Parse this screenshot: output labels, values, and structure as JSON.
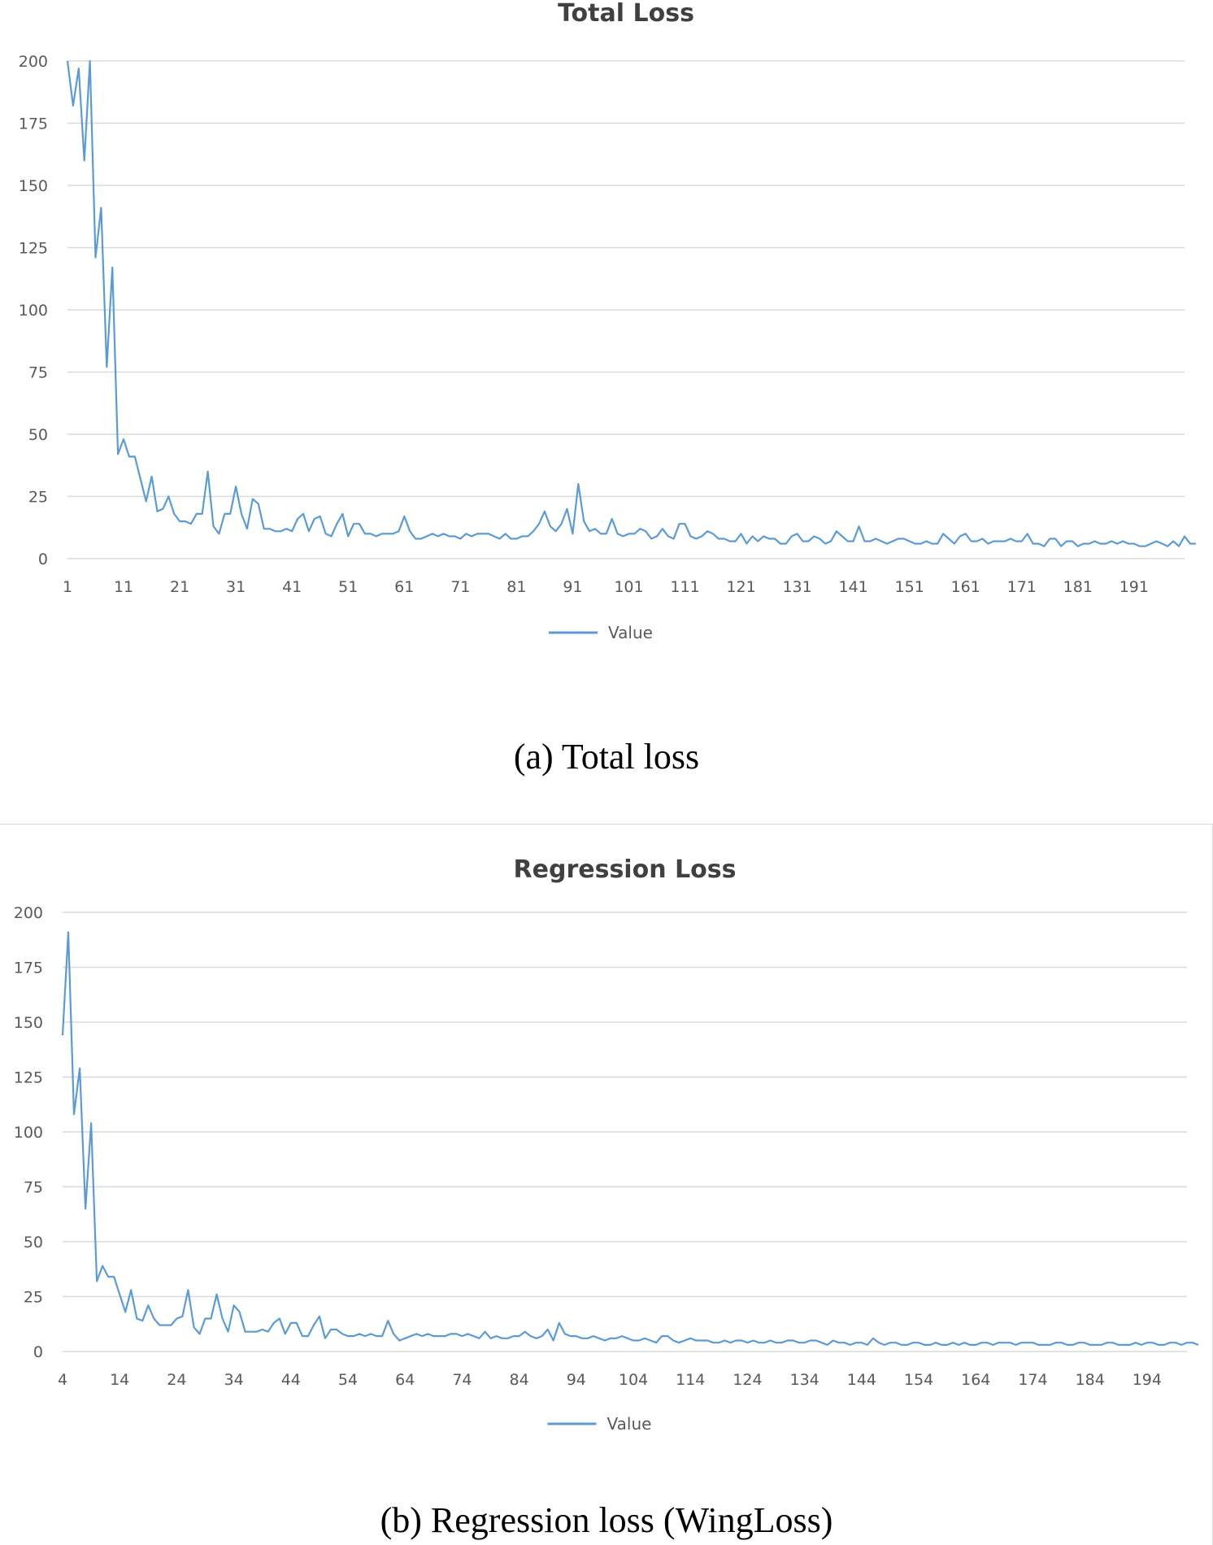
{
  "captions": {
    "a": "(a) Total loss",
    "b": "(b) Regression loss (WingLoss)"
  },
  "chart_data": [
    {
      "type": "line",
      "title": "Total Loss",
      "xlabel": "",
      "ylabel": "",
      "ylim": [
        0,
        200
      ],
      "yticks": [
        0,
        25,
        50,
        75,
        100,
        125,
        150,
        175,
        200
      ],
      "xticks": [
        1,
        11,
        21,
        31,
        41,
        51,
        61,
        71,
        81,
        91,
        101,
        111,
        121,
        131,
        141,
        151,
        161,
        171,
        181,
        191
      ],
      "xlim": [
        1,
        200
      ],
      "grid": "horizontal",
      "legend": "bottom",
      "color": "#5b9bd5",
      "series": [
        {
          "name": "Value",
          "x_start": 1,
          "values": [
            200,
            182,
            197,
            160,
            200,
            121,
            141,
            77,
            117,
            42,
            48,
            41,
            41,
            32,
            23,
            33,
            19,
            20,
            25,
            18,
            15,
            15,
            14,
            18,
            18,
            35,
            13,
            10,
            18,
            18,
            29,
            18,
            12,
            24,
            22,
            12,
            12,
            11,
            11,
            12,
            11,
            16,
            18,
            11,
            16,
            17,
            10,
            9,
            14,
            18,
            9,
            14,
            14,
            10,
            10,
            9,
            10,
            10,
            10,
            11,
            17,
            11,
            8,
            8,
            9,
            10,
            9,
            10,
            9,
            9,
            8,
            10,
            9,
            10,
            10,
            10,
            9,
            8,
            10,
            8,
            8,
            9,
            9,
            11,
            14,
            19,
            13,
            11,
            14,
            20,
            10,
            30,
            15,
            11,
            12,
            10,
            10,
            16,
            10,
            9,
            10,
            10,
            12,
            11,
            8,
            9,
            12,
            9,
            8,
            14,
            14,
            9,
            8,
            9,
            11,
            10,
            8,
            8,
            7,
            7,
            10,
            6,
            9,
            7,
            9,
            8,
            8,
            6,
            6,
            9,
            10,
            7,
            7,
            9,
            8,
            6,
            7,
            11,
            9,
            7,
            7,
            13,
            7,
            7,
            8,
            7,
            6,
            7,
            8,
            8,
            7,
            6,
            6,
            7,
            6,
            6,
            10,
            8,
            6,
            9,
            10,
            7,
            7,
            8,
            6,
            7,
            7,
            7,
            8,
            7,
            7,
            10,
            6,
            6,
            5,
            8,
            8,
            5,
            7,
            7,
            5,
            6,
            6,
            7,
            6,
            6,
            7,
            6,
            7,
            6,
            6,
            5,
            5,
            6,
            7,
            6,
            5,
            7,
            5,
            9,
            6,
            6
          ]
        }
      ]
    },
    {
      "type": "line",
      "title": "Regression Loss",
      "xlabel": "",
      "ylabel": "",
      "ylim": [
        0,
        200
      ],
      "yticks": [
        0,
        25,
        50,
        75,
        100,
        125,
        150,
        175,
        200
      ],
      "xticks": [
        4,
        14,
        24,
        34,
        44,
        54,
        64,
        74,
        84,
        94,
        104,
        114,
        124,
        134,
        144,
        154,
        164,
        174,
        184,
        194
      ],
      "xlim": [
        4,
        201
      ],
      "grid": "horizontal",
      "legend": "bottom",
      "color": "#5b9bd5",
      "series": [
        {
          "name": "Value",
          "x_start": 4,
          "values": [
            144,
            191,
            108,
            129,
            65,
            104,
            32,
            39,
            34,
            34,
            26,
            18,
            28,
            15,
            14,
            21,
            15,
            12,
            12,
            12,
            15,
            16,
            28,
            11,
            8,
            15,
            15,
            26,
            15,
            9,
            21,
            18,
            9,
            9,
            9,
            10,
            9,
            13,
            15,
            8,
            13,
            13,
            7,
            7,
            12,
            16,
            6,
            10,
            10,
            8,
            7,
            7,
            8,
            7,
            8,
            7,
            7,
            14,
            8,
            5,
            6,
            7,
            8,
            7,
            8,
            7,
            7,
            7,
            8,
            8,
            7,
            8,
            7,
            6,
            9,
            6,
            7,
            6,
            6,
            7,
            7,
            9,
            7,
            6,
            7,
            10,
            5,
            13,
            8,
            7,
            7,
            6,
            6,
            7,
            6,
            5,
            6,
            6,
            7,
            6,
            5,
            5,
            6,
            5,
            4,
            7,
            7,
            5,
            4,
            5,
            6,
            5,
            5,
            5,
            4,
            4,
            5,
            4,
            5,
            5,
            4,
            5,
            4,
            4,
            5,
            4,
            4,
            5,
            5,
            4,
            4,
            5,
            5,
            4,
            3,
            5,
            4,
            4,
            3,
            4,
            4,
            3,
            6,
            4,
            3,
            4,
            4,
            3,
            3,
            4,
            4,
            3,
            3,
            4,
            3,
            3,
            4,
            3,
            4,
            3,
            3,
            4,
            4,
            3,
            4,
            4,
            4,
            3,
            4,
            4,
            4,
            3,
            3,
            3,
            4,
            4,
            3,
            3,
            4,
            4,
            3,
            3,
            3,
            4,
            4,
            3,
            3,
            3,
            4,
            3,
            4,
            4,
            3,
            3,
            4,
            4,
            3,
            4,
            4,
            3
          ]
        }
      ]
    }
  ]
}
